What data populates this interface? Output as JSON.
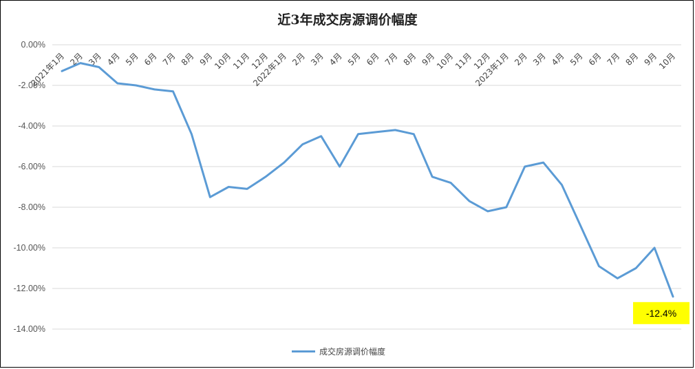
{
  "chart_data": {
    "type": "line",
    "title": "近3年成交房源调价幅度",
    "categories": [
      "2021年1月",
      "2月",
      "3月",
      "4月",
      "5月",
      "6月",
      "7月",
      "8月",
      "9月",
      "10月",
      "11月",
      "12月",
      "2022年1月",
      "2月",
      "3月",
      "4月",
      "5月",
      "6月",
      "7月",
      "8月",
      "9月",
      "10月",
      "11月",
      "12月",
      "2023年1月",
      "2月",
      "3月",
      "4月",
      "5月",
      "6月",
      "7月",
      "8月",
      "9月",
      "10月"
    ],
    "series": [
      {
        "name": "成交房源调价幅度",
        "values": [
          -1.3,
          -0.9,
          -1.1,
          -1.9,
          -2.0,
          -2.2,
          -2.3,
          -4.4,
          -7.5,
          -7.0,
          -7.1,
          -6.5,
          -5.8,
          -4.9,
          -4.5,
          -6.0,
          -4.4,
          -4.3,
          -4.2,
          -4.4,
          -6.5,
          -6.8,
          -7.7,
          -8.2,
          -8.0,
          -6.0,
          -5.8,
          -6.9,
          -8.9,
          -10.9,
          -11.5,
          -11.0,
          -10.0,
          -12.4
        ],
        "color": "#5b9bd5"
      }
    ],
    "ylim": [
      -14,
      0
    ],
    "yticks": [
      0,
      -2,
      -4,
      -6,
      -8,
      -10,
      -12,
      -14
    ],
    "ytick_labels": [
      "0.00%",
      "-2.00%",
      "-4.00%",
      "-6.00%",
      "-8.00%",
      "-10.00%",
      "-12.00%",
      "-14.00%"
    ],
    "grid": true,
    "legend_position": "bottom",
    "annotation": {
      "label": "-12.4%",
      "index": 33,
      "background": "#ffff00"
    }
  }
}
